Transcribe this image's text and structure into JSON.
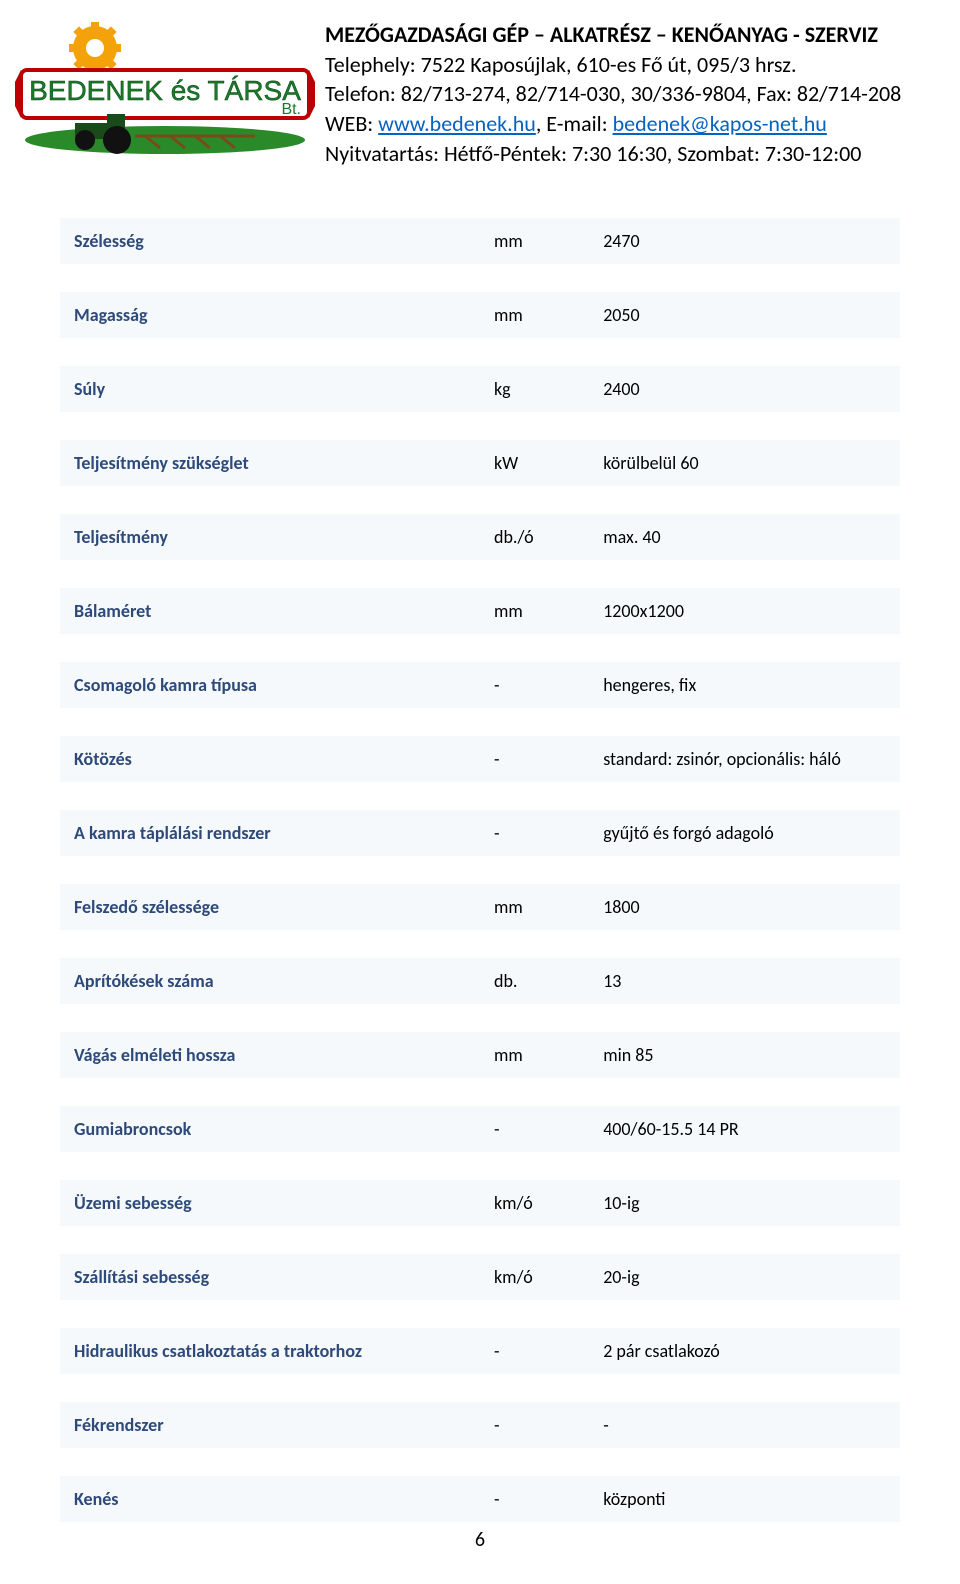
{
  "header": {
    "title": "MEZŐGAZDASÁGI GÉP – ALKATRÉSZ – KENŐANYAG - SZERVIZ",
    "line1_pre": "Telephely: 7522 Kaposújlak, 610-es Fő út, 095/3 hrsz.",
    "line2": "Telefon: 82/713-274, 82/714-030, 30/336-9804, Fax: 82/714-208",
    "line3_pre": "WEB: ",
    "link1": "www.bedenek.hu",
    "line3_mid": ", E-mail: ",
    "link2": "bedenek@kapos-net.hu",
    "line4": "Nyitvatartás: Hétfő-Péntek: 7:30 16:30, Szombat: 7:30-12:00"
  },
  "specs": {
    "rows": [
      {
        "label": "Szélesség",
        "unit": "mm",
        "value": "2470"
      },
      {
        "label": "Magasság",
        "unit": "mm",
        "value": "2050"
      },
      {
        "label": "Súly",
        "unit": "kg",
        "value": "2400"
      },
      {
        "label": "Teljesítmény szükséglet",
        "unit": "kW",
        "value": "körülbelül 60"
      },
      {
        "label": "Teljesítmény",
        "unit": "db./ó",
        "value": "max. 40"
      },
      {
        "label": "Bálaméret",
        "unit": "mm",
        "value": "1200x1200"
      },
      {
        "label": "Csomagoló kamra típusa",
        "unit": "-",
        "value": "hengeres, fix"
      },
      {
        "label": "Kötözés",
        "unit": "-",
        "value": "standard: zsinór, opcionális: háló"
      },
      {
        "label": "A kamra táplálási rendszer",
        "unit": "-",
        "value": "gyűjtő és forgó adagoló"
      },
      {
        "label": "Felszedő szélessége",
        "unit": "mm",
        "value": "1800"
      },
      {
        "label": "Aprítókések száma",
        "unit": "db.",
        "value": "13"
      },
      {
        "label": "Vágás elméleti hossza",
        "unit": "mm",
        "value": "min 85"
      },
      {
        "label": "Gumiabroncsok",
        "unit": "-",
        "value": "400/60-15.5 14 PR"
      },
      {
        "label": "Üzemi sebesség",
        "unit": "km/ó",
        "value": "10-ig"
      },
      {
        "label": "Szállítási sebesség",
        "unit": "km/ó",
        "value": "20-ig"
      },
      {
        "label": "Hidraulikus csatlakoztatás a traktorhoz",
        "unit": "-",
        "value": "2 pár csatlakozó"
      },
      {
        "label": "Fékrendszer",
        "unit": "-",
        "value": "-"
      },
      {
        "label": "Kenés",
        "unit": "-",
        "value": "központi"
      }
    ]
  },
  "page_number": "6",
  "colors": {
    "row_bg": "#f6f9fb",
    "label_color": "#2e4a7a",
    "link_color": "#0563c1"
  }
}
